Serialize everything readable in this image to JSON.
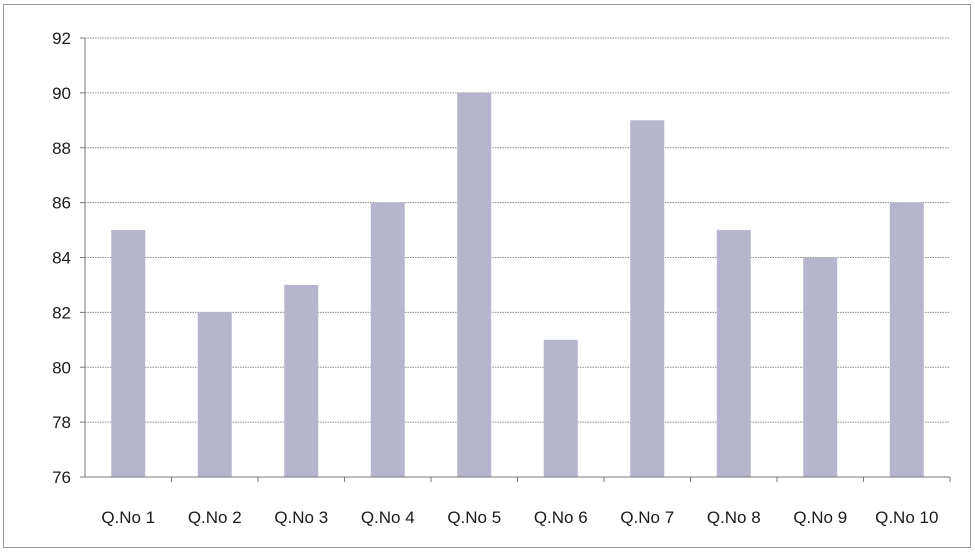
{
  "chart_data": {
    "type": "bar",
    "title": "",
    "xlabel": "",
    "ylabel": "",
    "categories": [
      "Q.No 1",
      "Q.No 2",
      "Q.No 3",
      "Q.No 4",
      "Q.No 5",
      "Q.No 6",
      "Q.No 7",
      "Q.No 8",
      "Q.No 9",
      "Q.No 10"
    ],
    "values": [
      85,
      82,
      83,
      86,
      90,
      81,
      89,
      85,
      84,
      86
    ],
    "ylim": [
      76,
      92
    ],
    "yticks": [
      76,
      78,
      80,
      82,
      84,
      86,
      88,
      90,
      92
    ],
    "grid": true,
    "legend": "none",
    "bar_color": "#b5b5cd",
    "grid_color": "#8c8c8c",
    "axis_color": "#7a7a7a"
  }
}
